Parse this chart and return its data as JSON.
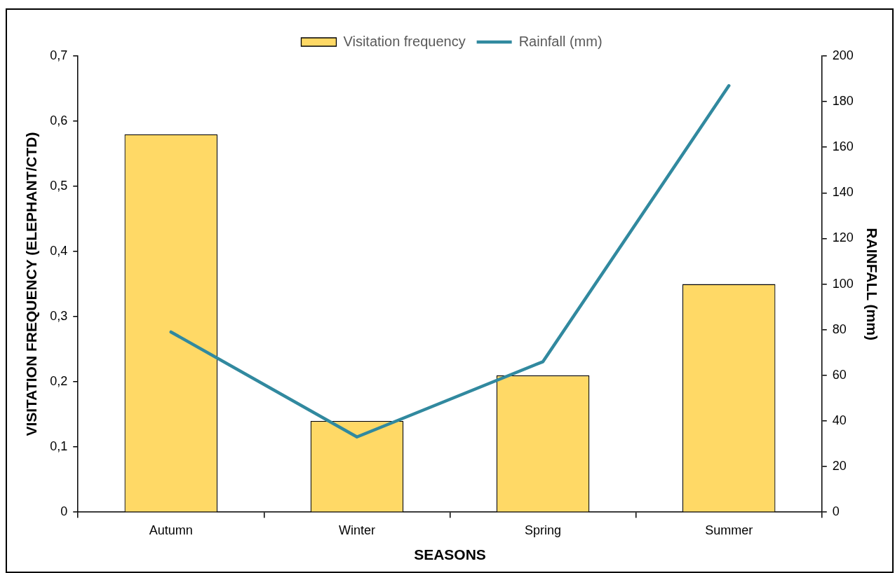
{
  "chart_data": {
    "type": "bar",
    "xlabel": "SEASONS",
    "ylabel": "VISITATION FREQUENCY (ELEPHANT/CTD)",
    "y2label": "RAINFALL (mm)",
    "categories": [
      "Autumn",
      "Winter",
      "Spring",
      "Summer"
    ],
    "series": [
      {
        "name": "Visitation frequency",
        "color": "#ffd966",
        "values": [
          0.58,
          0.14,
          0.21,
          0.35
        ]
      },
      {
        "name": "Rainfall (mm)",
        "type": "line",
        "axis": "y2",
        "color": "#31899f",
        "values": [
          79,
          33,
          66,
          187
        ]
      }
    ],
    "ylim": [
      0,
      0.7
    ],
    "yticks": [
      0,
      {
        "value": 0.1,
        "label": "0,1"
      },
      {
        "value": 0.2,
        "label": "0,2"
      },
      {
        "value": 0.3,
        "label": "0,3"
      },
      {
        "value": 0.4,
        "label": "0,4"
      },
      {
        "value": 0.5,
        "label": "0,5"
      },
      {
        "value": 0.6,
        "label": "0,6"
      },
      {
        "value": 0.7,
        "label": "0,7"
      }
    ],
    "y2lim": [
      0,
      200
    ],
    "y2ticks": [
      0,
      20,
      40,
      60,
      80,
      100,
      120,
      140,
      160,
      180,
      200
    ],
    "grid": false,
    "legend": "top",
    "marker": "none"
  }
}
